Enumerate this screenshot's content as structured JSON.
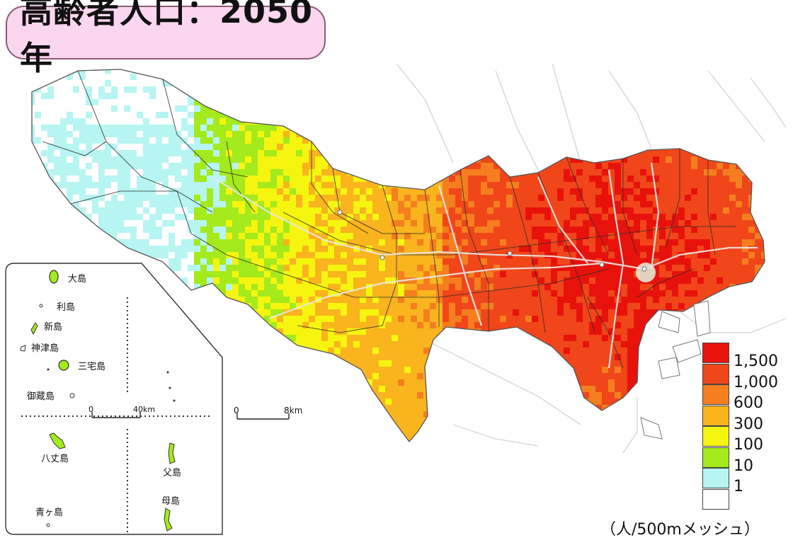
{
  "title": "高齢者人口：2050年",
  "legend": {
    "unit": "（人/500mメッシュ）",
    "classes": [
      {
        "label": "1,500",
        "color": "#e8120c"
      },
      {
        "label": "1,000",
        "color": "#f0461a"
      },
      {
        "label": "600",
        "color": "#f57e1f"
      },
      {
        "label": "300",
        "color": "#f9b41e"
      },
      {
        "label": "100",
        "color": "#f6f50f"
      },
      {
        "label": "10",
        "color": "#a4ea1c"
      },
      {
        "label": "1",
        "color": "#b7f5f2"
      },
      {
        "label": "",
        "color": "#ffffff"
      }
    ]
  },
  "islands": {
    "oshima": "大島",
    "toshima": "利島",
    "niijima": "新島",
    "kozushima": "神津島",
    "miyakejima": "三宅島",
    "mikurajima": "御蔵島",
    "hachijojima": "八丈島",
    "aogashima": "青ヶ島",
    "chichijima": "父島",
    "hahajima": "母島"
  },
  "scales": {
    "inset": {
      "zero": "0",
      "end": "40km"
    },
    "main": {
      "zero": "0",
      "end": "8km"
    }
  }
}
